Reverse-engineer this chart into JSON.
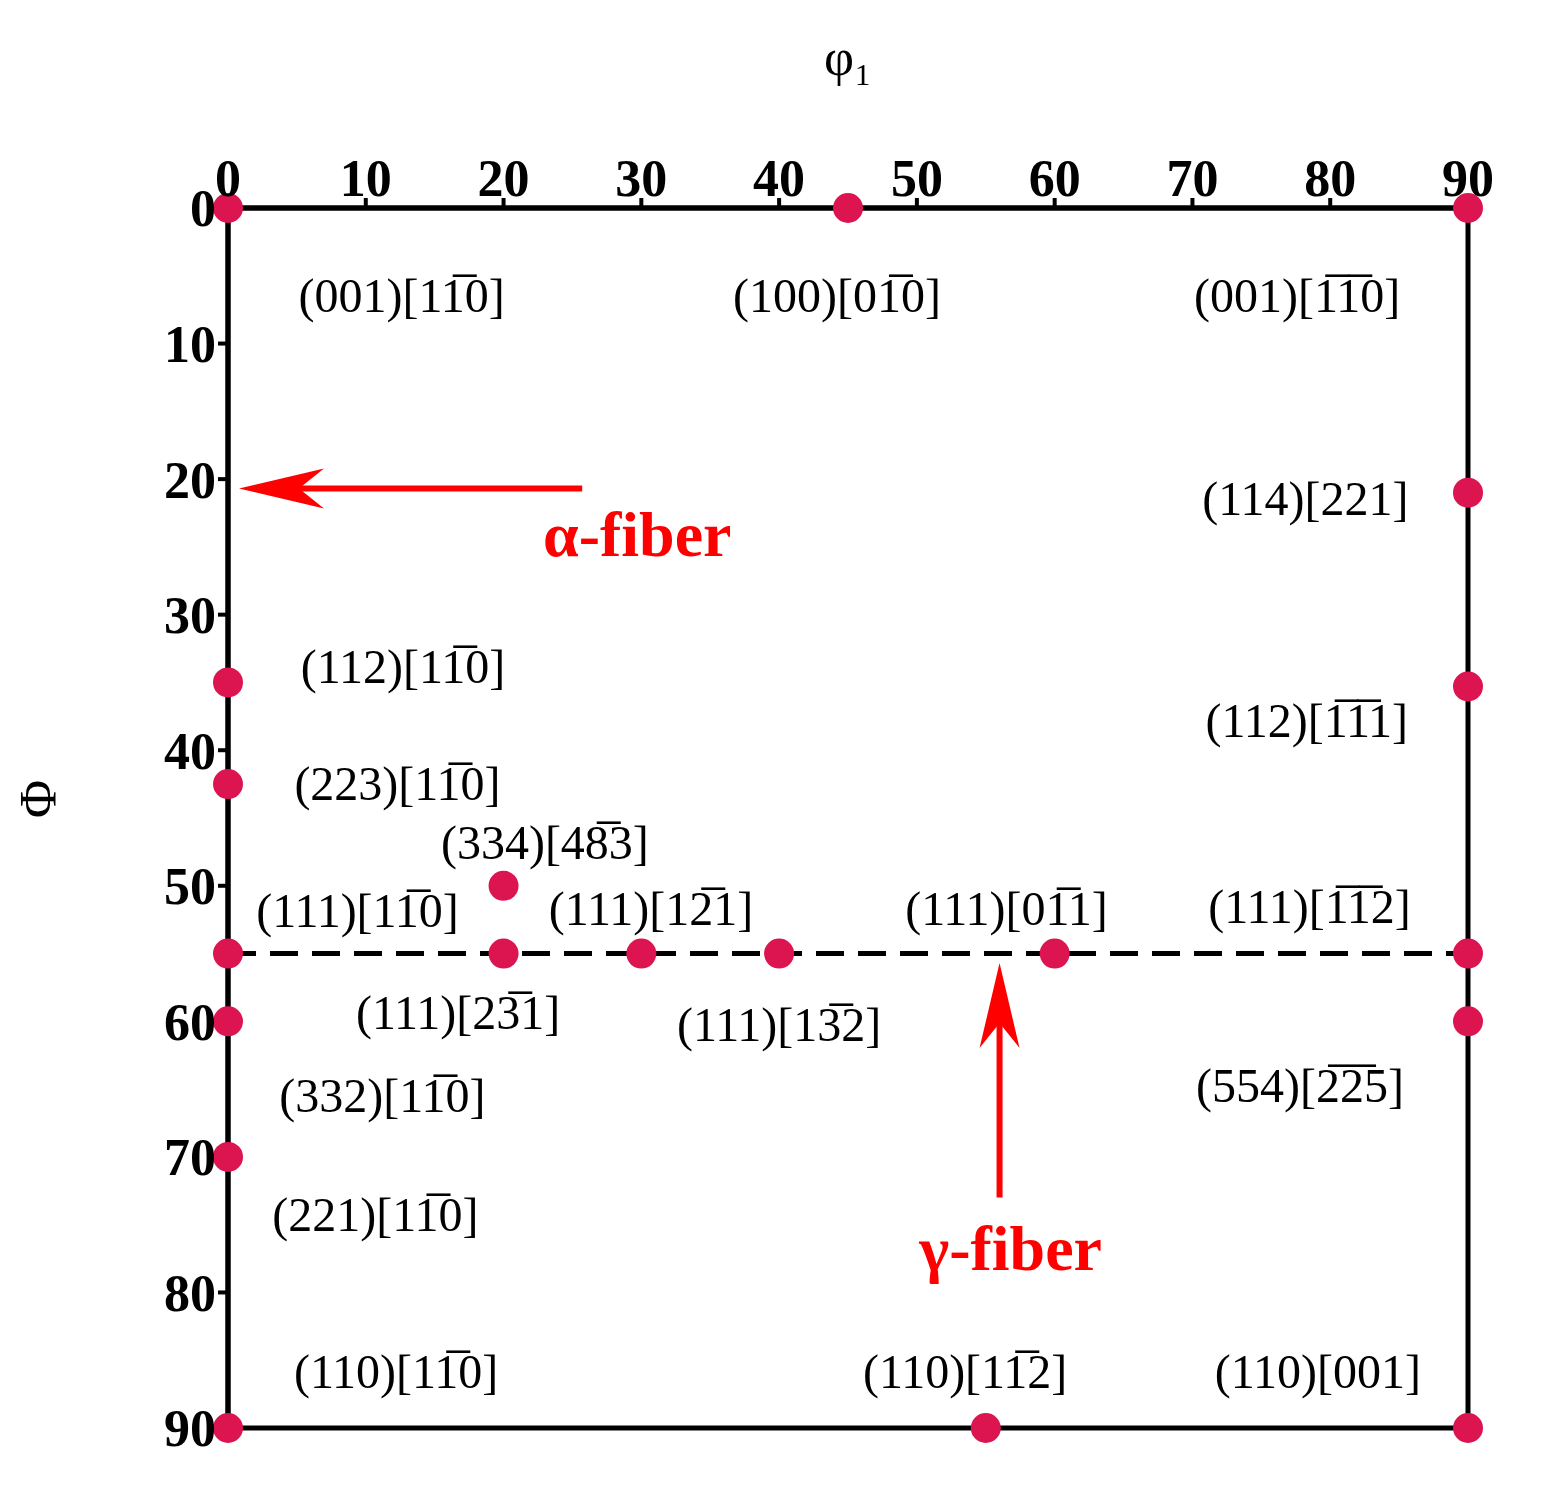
{
  "chart_data": {
    "type": "scatter",
    "xlabel": "φ₁",
    "ylabel": "Φ",
    "x": [
      0,
      45,
      90,
      90,
      0,
      90,
      0,
      20,
      0,
      20,
      30,
      40,
      60,
      90,
      0,
      90,
      0,
      0,
      55,
      90
    ],
    "series": [
      {
        "color": "#dc1450",
        "values": [
          0,
          0,
          0,
          21,
          35,
          35.3,
          42.5,
          50,
          55,
          55,
          55,
          55,
          55,
          55,
          60,
          60,
          70,
          90,
          90,
          90
        ]
      }
    ],
    "marker": "circle",
    "xlim": [
      0,
      90
    ],
    "xticks": [
      0,
      10,
      20,
      30,
      40,
      50,
      60,
      70,
      80,
      90
    ],
    "ylim": [
      90,
      0
    ],
    "yticks": [
      0,
      10,
      20,
      30,
      40,
      50,
      60,
      70,
      80,
      90
    ],
    "grid": false,
    "legend": false,
    "ref_lines": [
      {
        "axis": "y",
        "value": 55,
        "color": "#000000",
        "line_style": "dashed"
      }
    ],
    "annotations": [
      "(001)[11̅0]",
      "(100)[01̅0]",
      "(001)[1̅1̅0]",
      "(114)[221]",
      "(112)[11̅0]",
      "(112)[1̅1̅1]",
      "(223)[11̅0]",
      "(334)[48̅3]",
      "(111)[11̅0]",
      "(111)[12̅1]",
      "(111)[01̅1]",
      "(111)[1̅1̅2]",
      "(111)[23̅1]",
      "(111)[13̅2]",
      "(554)[2̅2̅5]",
      "(332)[11̅0]",
      "(221)[11̅0]",
      "(110)[11̅0]",
      "(110)[11̅2]",
      "(110)[001]",
      "α-fiber",
      "γ-fiber"
    ]
  }
}
